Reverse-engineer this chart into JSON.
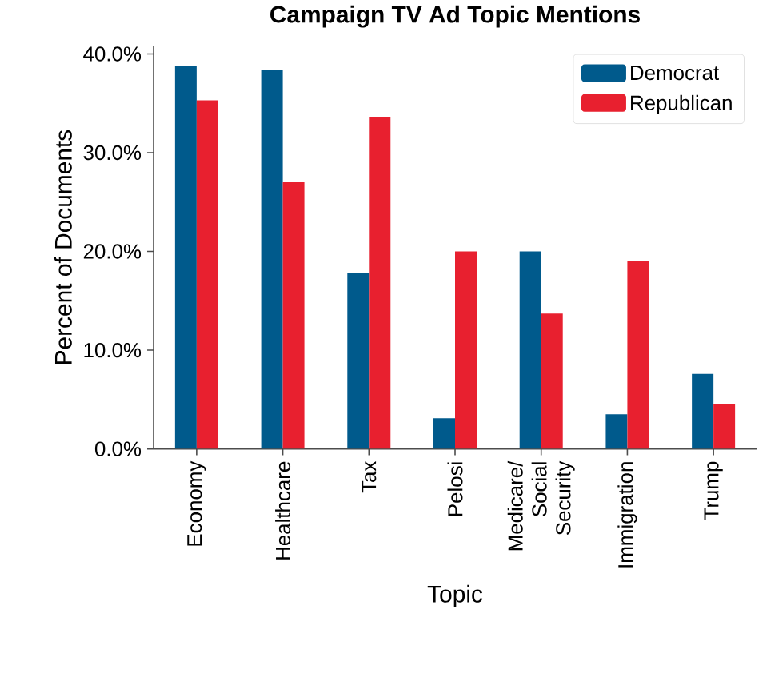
{
  "chart_data": {
    "type": "bar",
    "title": "Campaign TV Ad Topic Mentions",
    "xlabel": "Topic",
    "ylabel": "Percent of Documents",
    "categories": [
      "Economy",
      "Healthcare",
      "Tax",
      "Pelosi",
      "Medicare/ Social Security",
      "Immigration",
      "Trump"
    ],
    "series": [
      {
        "name": "Democrat",
        "color": "#005a8c",
        "values": [
          38.8,
          38.4,
          17.8,
          3.1,
          20.0,
          3.5,
          7.6
        ]
      },
      {
        "name": "Republican",
        "color": "#e8202f",
        "values": [
          35.3,
          27.0,
          33.6,
          20.0,
          13.7,
          19.0,
          4.5
        ]
      }
    ],
    "ylim": [
      0,
      40.8
    ],
    "yticks": [
      {
        "value": 0,
        "label": "0.0%"
      },
      {
        "value": 10,
        "label": "10.0%"
      },
      {
        "value": 20,
        "label": "20.0%"
      },
      {
        "value": 30,
        "label": "30.0%"
      },
      {
        "value": 40,
        "label": "40.0%"
      }
    ],
    "legend": "top right",
    "grid": false
  }
}
